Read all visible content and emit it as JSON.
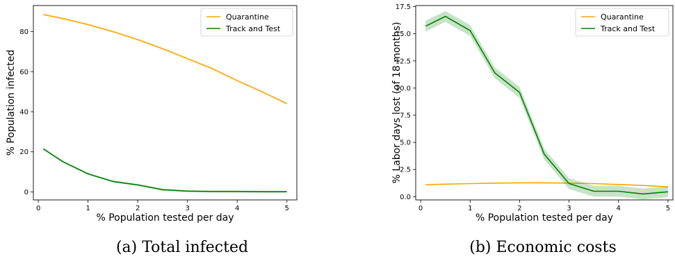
{
  "chart_data": [
    {
      "type": "line",
      "caption": "(a) Total infected",
      "xlabel": "% Population tested per day",
      "ylabel": "% Population infected",
      "xlim": [
        -0.1,
        5.2
      ],
      "ylim": [
        -4,
        93
      ],
      "xticks": [
        0,
        1,
        2,
        3,
        4,
        5
      ],
      "yticks": [
        0,
        20,
        40,
        60,
        80
      ],
      "ytick_labels": [
        "0",
        "20",
        "40",
        "60",
        "80"
      ],
      "legend_position": "top-right",
      "series": [
        {
          "name": "Quarantine",
          "color": "#ffa500",
          "x": [
            0.1,
            0.5,
            1,
            1.5,
            2,
            2.5,
            3,
            3.5,
            4,
            4.5,
            5
          ],
          "y": [
            88.5,
            86.5,
            83.5,
            80,
            76,
            71.5,
            66.5,
            61.5,
            55.5,
            50,
            44
          ],
          "band": 0.4
        },
        {
          "name": "Track and Test",
          "color": "#008000",
          "x": [
            0.1,
            0.5,
            1,
            1.5,
            2,
            2.5,
            3,
            3.5,
            4,
            4.5,
            5
          ],
          "y": [
            21.5,
            15,
            9,
            5.2,
            3.5,
            1.1,
            0.4,
            0.2,
            0.2,
            0.1,
            0.1
          ],
          "band": 0.5
        }
      ]
    },
    {
      "type": "line",
      "caption": "(b) Economic costs",
      "xlabel": "% Population tested per day",
      "ylabel": "% Labor days lost (of 18 months)",
      "xlim": [
        -0.1,
        5.1
      ],
      "ylim": [
        -0.3,
        17.6
      ],
      "xticks": [
        0,
        1,
        2,
        3,
        4,
        5
      ],
      "yticks": [
        0,
        2.5,
        5,
        7.5,
        10,
        12.5,
        15,
        17.5
      ],
      "ytick_labels": [
        "0.0",
        "2.5",
        "5.0",
        "7.5",
        "10.0",
        "12.5",
        "15.0",
        "17.5"
      ],
      "legend_position": "top-right",
      "series": [
        {
          "name": "Quarantine",
          "color": "#ffa500",
          "x": [
            0.1,
            0.5,
            1,
            1.5,
            2,
            2.5,
            3,
            3.5,
            4,
            4.5,
            5
          ],
          "y": [
            1.1,
            1.15,
            1.2,
            1.25,
            1.27,
            1.27,
            1.25,
            1.2,
            1.12,
            1.03,
            0.9
          ],
          "band": 0.03
        },
        {
          "name": "Track and Test",
          "color": "#008000",
          "x": [
            0.1,
            0.5,
            1,
            1.5,
            2,
            2.5,
            3,
            3.5,
            4,
            4.5,
            5
          ],
          "y": [
            15.7,
            16.6,
            15.3,
            11.4,
            9.6,
            3.9,
            1.2,
            0.5,
            0.5,
            0.25,
            0.45
          ],
          "band": 0.5
        }
      ]
    }
  ]
}
